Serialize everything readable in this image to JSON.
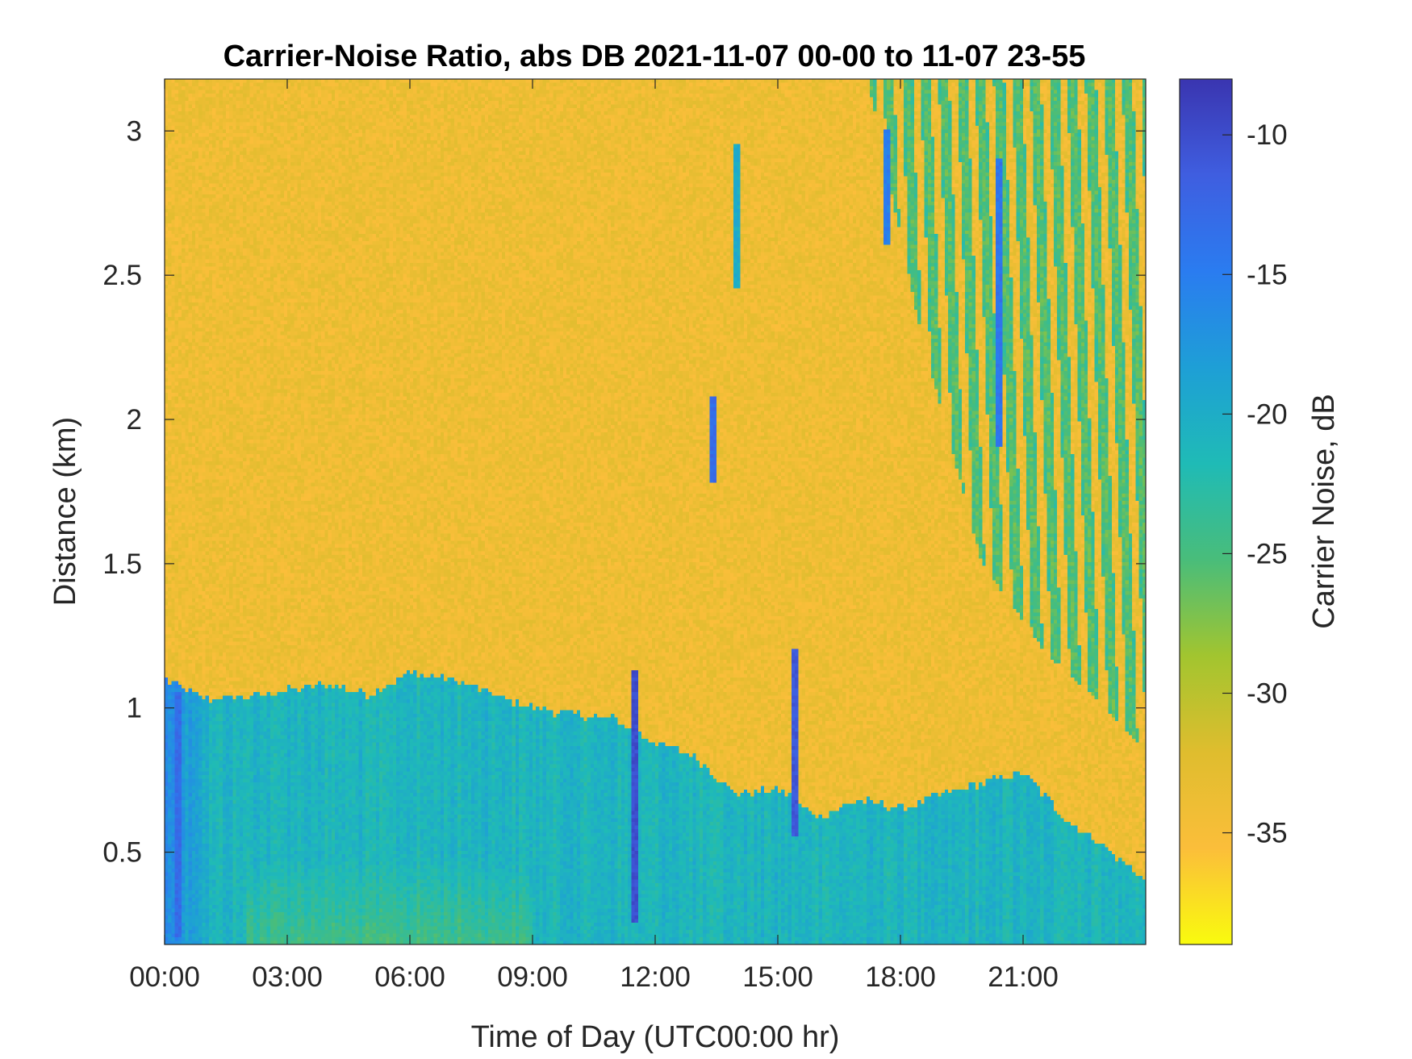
{
  "chart_data": {
    "type": "heatmap",
    "title": "Carrier-Noise Ratio, abs DB 2021-11-07 00-00 to 11-07 23-55",
    "xlabel": "Time of Day (UTC00:00 hr)",
    "ylabel": "Distance (km)",
    "colorbar_label": "Carrier Noise, dB",
    "x_range_hours": [
      0,
      24
    ],
    "ylim": [
      0.18,
      3.18
    ],
    "clim": [
      -39,
      -8
    ],
    "x_ticks": [
      {
        "hour": 0,
        "label": "00:00"
      },
      {
        "hour": 3,
        "label": "03:00"
      },
      {
        "hour": 6,
        "label": "06:00"
      },
      {
        "hour": 9,
        "label": "09:00"
      },
      {
        "hour": 12,
        "label": "12:00"
      },
      {
        "hour": 15,
        "label": "15:00"
      },
      {
        "hour": 18,
        "label": "18:00"
      },
      {
        "hour": 21,
        "label": "21:00"
      }
    ],
    "y_ticks": [
      {
        "value": 0.5,
        "label": "0.5"
      },
      {
        "value": 1,
        "label": "1"
      },
      {
        "value": 1.5,
        "label": "1.5"
      },
      {
        "value": 2,
        "label": "2"
      },
      {
        "value": 2.5,
        "label": "2.5"
      },
      {
        "value": 3,
        "label": "3"
      }
    ],
    "colorbar_ticks": [
      {
        "value": -10,
        "label": "-10"
      },
      {
        "value": -15,
        "label": "-15"
      },
      {
        "value": -20,
        "label": "-20"
      },
      {
        "value": -25,
        "label": "-25"
      },
      {
        "value": -30,
        "label": "-30"
      },
      {
        "value": -35,
        "label": "-35"
      }
    ],
    "colormap": [
      "#f9fb0e",
      "#fbbe3a",
      "#dfbd2e",
      "#a2c52f",
      "#49bd7a",
      "#1fbbb6",
      "#1e9fd6",
      "#2a7cf0",
      "#3f5ee0",
      "#3a35b0"
    ],
    "background_level_db": -34,
    "boundary_layer": {
      "level_db": -21,
      "top_km": [
        [
          0,
          1.1
        ],
        [
          1,
          1.03
        ],
        [
          2,
          1.04
        ],
        [
          3,
          1.06
        ],
        [
          4,
          1.08
        ],
        [
          5,
          1.05
        ],
        [
          6,
          1.12
        ],
        [
          7,
          1.1
        ],
        [
          8,
          1.05
        ],
        [
          9,
          1.0
        ],
        [
          10,
          0.98
        ],
        [
          11,
          0.96
        ],
        [
          12,
          0.88
        ],
        [
          13,
          0.83
        ],
        [
          14,
          0.7
        ],
        [
          15,
          0.72
        ],
        [
          16,
          0.62
        ],
        [
          17,
          0.68
        ],
        [
          18,
          0.65
        ],
        [
          19,
          0.7
        ],
        [
          20,
          0.74
        ],
        [
          21,
          0.78
        ],
        [
          22,
          0.62
        ],
        [
          23,
          0.52
        ],
        [
          24,
          0.4
        ]
      ]
    },
    "cloud_region": {
      "level_db": -24,
      "hours": [
        17.2,
        24
      ],
      "edge_km": [
        [
          17.2,
          3.18
        ],
        [
          18.5,
          2.3
        ],
        [
          20,
          1.5
        ],
        [
          21.5,
          1.2
        ],
        [
          23,
          1.0
        ],
        [
          24,
          0.85
        ]
      ]
    },
    "strong_echoes": [
      {
        "hour": 11.5,
        "km_range": [
          0.25,
          1.13
        ],
        "db": -10
      },
      {
        "hour": 13.45,
        "km_range": [
          1.78,
          2.08
        ],
        "db": -13
      },
      {
        "hour": 14.0,
        "km_range": [
          2.45,
          2.95
        ],
        "db": -20
      },
      {
        "hour": 15.4,
        "km_range": [
          0.55,
          1.2
        ],
        "db": -11
      },
      {
        "hour": 17.7,
        "km_range": [
          2.6,
          3.0
        ],
        "db": -15
      },
      {
        "hour": 20.4,
        "km_range": [
          1.9,
          2.9
        ],
        "db": -14
      },
      {
        "hour": 0.3,
        "km_range": [
          0.2,
          1.05
        ],
        "db": -13
      }
    ]
  }
}
